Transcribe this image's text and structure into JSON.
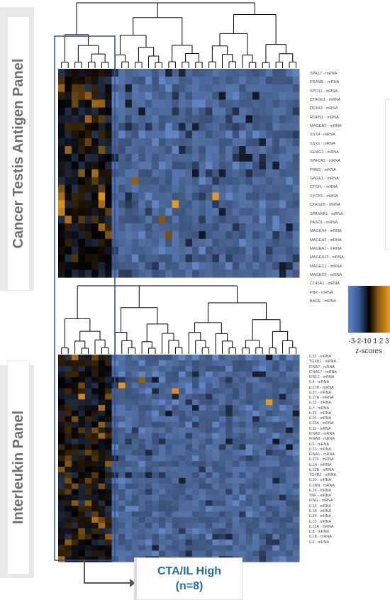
{
  "panels": {
    "cta_title": "Cancer Testis Antigen Panel",
    "il_title": "Interleukin Panel"
  },
  "cta_genes": [
    "SPA17 - mRNA",
    "PRAME - mRNA",
    "SPO11 - mRNA",
    "CTAGE1 - mRNA",
    "DDX43 - mRNA",
    "ROPN1 - mRNA",
    "MAGEB2 - mRNA",
    "SSX4 - mRNA",
    "SSX1 - mRNA",
    "SEMG1 - mRNA",
    "SPACA3 - mRNA",
    "PRM1 - mRNA",
    "GAGE1 - mRNA",
    "CTCFL - mRNA",
    "SYCP1 - mRNA",
    "CTAG1B - mRNA",
    "SPANXB1 - mRNA",
    "PASD1 - mRNA",
    "MAGEA4 - mRNA",
    "MAGEA3 - mRNA",
    "MAGEA1 - mRNA",
    "MAGEA12 - mRNA",
    "MAGEC1 - mRNA",
    "MAGEC2 - mRNA",
    "CT45A1 - mRNA",
    "PBK - mRNA",
    "BAGE - mRNA"
  ],
  "il_genes": [
    "IL32 - mRNA",
    "TGFB1 - mRNA",
    "IFNA7 - mRNA",
    "IFNA17 - mRNA",
    "IFNL1 - mRNA",
    "IL4 - mRNA",
    "IL17B - mRNA",
    "IL27 - mRNA",
    "IL17A - mRNA",
    "IL13 - mRNA",
    "IL7 - mRNA",
    "IL25 - mRNA",
    "IL26 - mRNA",
    "IL23A - mRNA",
    "IL11 - mRNA",
    "IFNA2 - mRNA",
    "IFNA8 - mRNA",
    "IL5 - mRNA",
    "IL21 - mRNA",
    "IFNA1 - mRNA",
    "IL17F - mRNA",
    "IL1A - mRNA",
    "IL12B - mRNA",
    "TGFB2 - mRNA",
    "IL10 - mRNA",
    "IL1RN - mRNA",
    "IL24 - mRNA",
    "TNF - mRNA",
    "IFNG - mRNA",
    "IL16 - mRNA",
    "IL18 - mRNA",
    "IL34 - mRNA",
    "IL15 - mRNA",
    "IL12A - mRNA",
    "IL8 - mRNA",
    "IL1B - mRNA",
    "IL6 - mRNA"
  ],
  "legend": {
    "ticks": "-3-2-10 1 2 3",
    "caption": "z-scores",
    "colors": [
      "#5e86ce",
      "#000000",
      "#f0a020"
    ]
  },
  "group": {
    "line1": "CTA/IL High",
    "line2": "(n=8)",
    "color": "#1f6ab5"
  },
  "colors": {
    "base": "#3f66ad",
    "high": "#f0a020",
    "low": "#000000",
    "box": "#2e4f9e"
  }
}
